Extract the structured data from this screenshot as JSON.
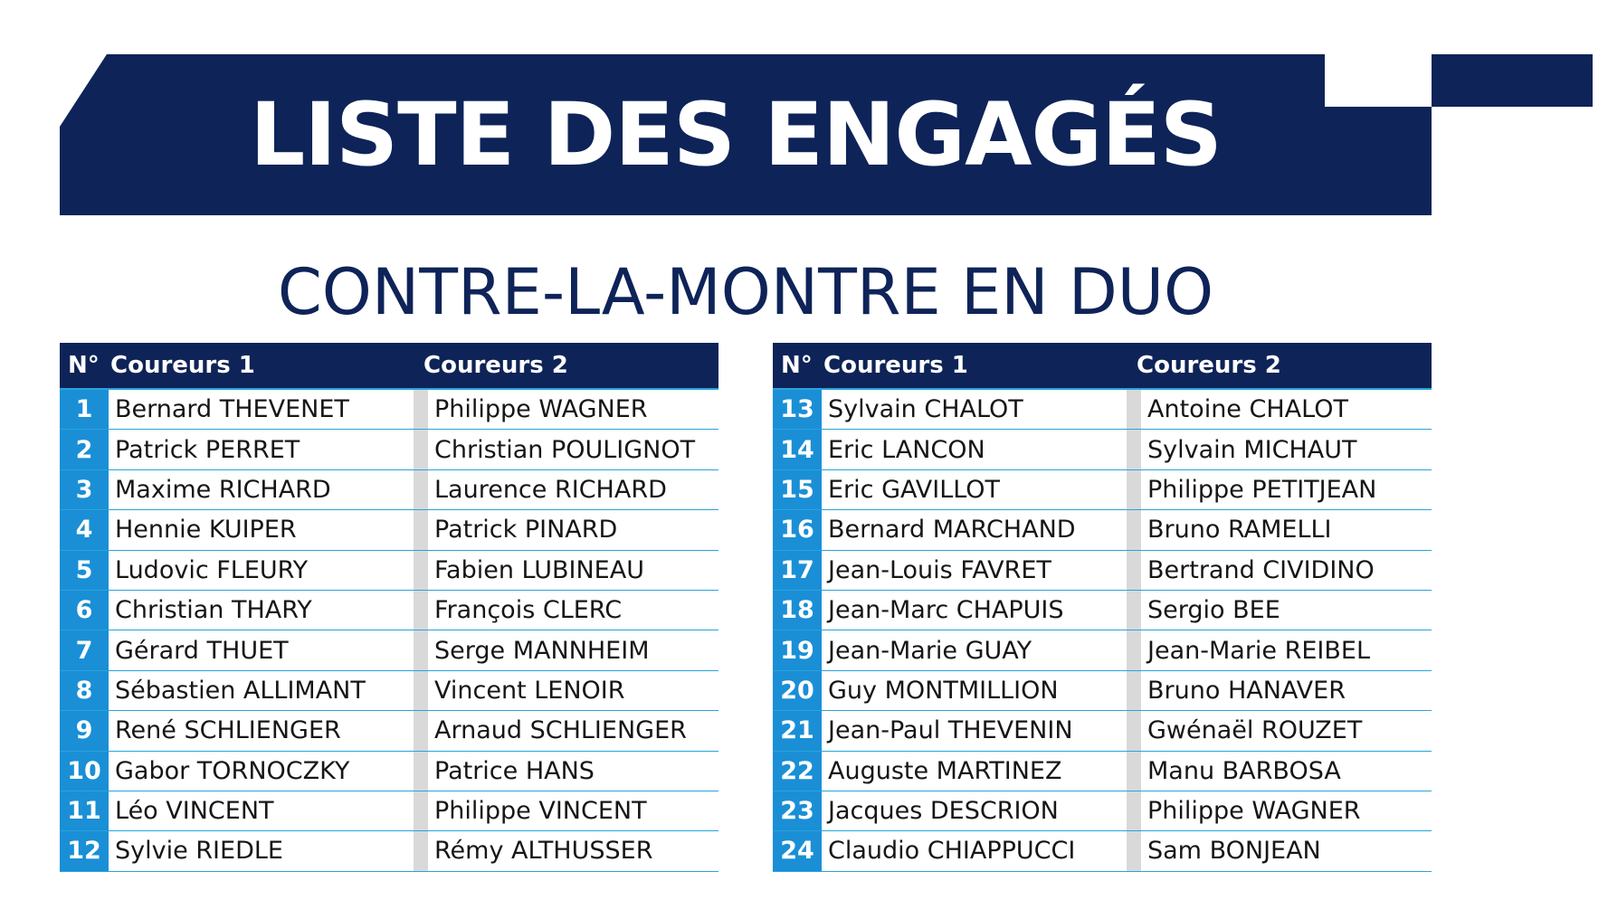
{
  "colors": {
    "navy": "#0e2358",
    "blue": "#1a8fd6",
    "line": "#29a3dc",
    "separator": "#d9d9d9"
  },
  "title": "LISTE DES ENGAGÉS",
  "subtitle": "CONTRE-LA-MONTRE EN DUO",
  "tables": [
    {
      "headers": {
        "num": "N°",
        "rider1": "Coureurs 1",
        "rider2": "Coureurs 2"
      },
      "rows": [
        {
          "num": "1",
          "rider1": "Bernard THEVENET",
          "rider2": "Philippe WAGNER"
        },
        {
          "num": "2",
          "rider1": "Patrick PERRET",
          "rider2": "Christian POULIGNOT"
        },
        {
          "num": "3",
          "rider1": "Maxime RICHARD",
          "rider2": "Laurence RICHARD"
        },
        {
          "num": "4",
          "rider1": "Hennie KUIPER",
          "rider2": "Patrick PINARD"
        },
        {
          "num": "5",
          "rider1": "Ludovic FLEURY",
          "rider2": "Fabien LUBINEAU"
        },
        {
          "num": "6",
          "rider1": "Christian THARY",
          "rider2": "François CLERC"
        },
        {
          "num": "7",
          "rider1": "Gérard THUET",
          "rider2": "Serge MANNHEIM"
        },
        {
          "num": "8",
          "rider1": "Sébastien ALLIMANT",
          "rider2": "Vincent LENOIR"
        },
        {
          "num": "9",
          "rider1": "René SCHLIENGER",
          "rider2": "Arnaud SCHLIENGER"
        },
        {
          "num": "10",
          "rider1": "Gabor TORNOCZKY",
          "rider2": "Patrice HANS"
        },
        {
          "num": "11",
          "rider1": "Léo VINCENT",
          "rider2": "Philippe VINCENT"
        },
        {
          "num": "12",
          "rider1": "Sylvie RIEDLE",
          "rider2": "Rémy ALTHUSSER"
        }
      ]
    },
    {
      "headers": {
        "num": "N°",
        "rider1": "Coureurs 1",
        "rider2": "Coureurs 2"
      },
      "rows": [
        {
          "num": "13",
          "rider1": "Sylvain CHALOT",
          "rider2": "Antoine CHALOT"
        },
        {
          "num": "14",
          "rider1": "Eric LANCON",
          "rider2": "Sylvain MICHAUT"
        },
        {
          "num": "15",
          "rider1": "Eric GAVILLOT",
          "rider2": "Philippe PETITJEAN"
        },
        {
          "num": "16",
          "rider1": "Bernard MARCHAND",
          "rider2": "Bruno RAMELLI"
        },
        {
          "num": "17",
          "rider1": "Jean-Louis FAVRET",
          "rider2": "Bertrand CIVIDINO"
        },
        {
          "num": "18",
          "rider1": "Jean-Marc CHAPUIS",
          "rider2": "Sergio BEE"
        },
        {
          "num": "19",
          "rider1": "Jean-Marie GUAY",
          "rider2": "Jean-Marie REIBEL"
        },
        {
          "num": "20",
          "rider1": "Guy MONTMILLION",
          "rider2": "Bruno HANAVER"
        },
        {
          "num": "21",
          "rider1": "Jean-Paul THEVENIN",
          "rider2": "Gwénaël ROUZET"
        },
        {
          "num": "22",
          "rider1": "Auguste MARTINEZ",
          "rider2": "Manu BARBOSA"
        },
        {
          "num": "23",
          "rider1": "Jacques DESCRION",
          "rider2": "Philippe WAGNER"
        },
        {
          "num": "24",
          "rider1": "Claudio CHIAPPUCCI",
          "rider2": "Sam BONJEAN"
        }
      ]
    }
  ]
}
